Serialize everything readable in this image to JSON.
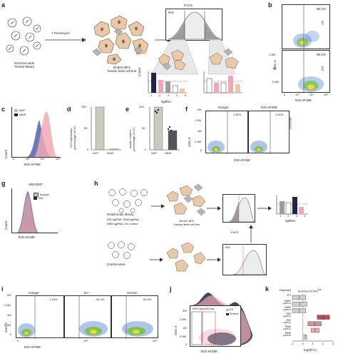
{
  "colors": {
    "pink": "#f0a9b2",
    "navy": "#1f2547",
    "beige": "#e9c9a8",
    "grey": "#9c9c9c",
    "red": "#c8323c",
    "density_blue": "#3d6fd0",
    "density_green": "#7cc353",
    "density_yellow": "#f2d43c"
  },
  "panels": {
    "a": "a",
    "b": "b",
    "c": "c",
    "d": "d",
    "e": "e",
    "f": "f",
    "g": "g",
    "h": "h",
    "i": "i",
    "j": "j",
    "k": "k"
  },
  "a": {
    "library_label": "Genome-wide\nTKOv3 library",
    "puromycin": "+ Puromycin",
    "cell_label": "EndoC-βH1\nhuman beta cell line",
    "facs": "FACS",
    "ins": "INS",
    "sgrna": "sgRNA",
    "count": "Count",
    "ticks": [
      "1",
      "2",
      "3",
      "4",
      "5"
    ]
  },
  "b": {
    "xlabel": "INS-AF488",
    "ylabel": "SSC-A",
    "top_pct": "56.1%",
    "top_name": "WT",
    "bottom_pct": "96.1%",
    "bottom_name": "INT",
    "y_ticks": [
      "1.5M",
      "1M",
      "0.5M",
      "0"
    ],
    "x_ticks": [
      "0",
      "10³",
      "10⁴",
      "10⁵"
    ]
  },
  "c": {
    "legend": [
      "siNT",
      "siINS"
    ],
    "xlabel": "INS-AF488",
    "ylabel": "Count",
    "x_ticks": [
      "0",
      "10³",
      "10⁴",
      "10⁵"
    ]
  },
  "d": {
    "ylabel": "INS expression\n(percentage of NT)",
    "y_ticks": [
      "100",
      "50",
      "0"
    ],
    "categories": [
      "siNT",
      "siINS"
    ],
    "values": [
      100,
      2
    ]
  },
  "e": {
    "ylabel": "Insulin content\n(percentage of NT)",
    "y_ticks": [
      "100",
      "50",
      "0"
    ],
    "categories": [
      "siNT",
      "siINS"
    ],
    "values": [
      100,
      45
    ]
  },
  "f": {
    "isotype": "Isotype",
    "ins": "INS-AF488",
    "iso_pct": "1.81%",
    "ins_pct": "1.54%",
    "side": "HEK293T",
    "xlabel": "INS-AF488",
    "ylabel": "SSC-A",
    "y_ticks": [
      "2M",
      "1.5M",
      "1M",
      "0.5M",
      "0"
    ]
  },
  "g": {
    "title": "HEK293T",
    "legend": [
      "Isotype",
      "INS"
    ],
    "xlabel": "INS-AF488",
    "ylabel": "Count"
  },
  "h": {
    "library_label": "Small-scale library",
    "items": [
      "INS sgRNA",
      "PAM sgRNA",
      "NMS sgRNA",
      "EV control"
    ],
    "cell_label": "EndoC-βH1\nHuman beta cell line",
    "facs": "FACS",
    "control": "Control virus",
    "ins": "INS",
    "sgrna": "sgRNA",
    "ticks": [
      "1",
      "2",
      "3",
      "4"
    ]
  },
  "i": {
    "titles": [
      "Isotype",
      "EV",
      "Screen"
    ],
    "pcts": [
      "1.14%",
      "94.4%",
      "69.4%"
    ],
    "xlabel": "INS-AF488",
    "ylabel": "SSC-A",
    "y_ticks": [
      "2M",
      "1.5M",
      "1M",
      "0.5M",
      "0"
    ],
    "x_ticks": [
      "0",
      "10³",
      "10⁵"
    ]
  },
  "j": {
    "gates": [
      "INS^neg",
      "INS^low"
    ],
    "legend": [
      "EV",
      "Screen"
    ],
    "xlabel": "INS-AF488",
    "ylabel": "SSC-A",
    "y_ticks": [
      "2M",
      "1.5M",
      "1M",
      "0.5M",
      "0"
    ]
  },
  "k": {
    "depleted": "Depleted",
    "enriched": "Enriched in INS",
    "enriched_sup": "low",
    "xlabel": "log2(FC)",
    "rows": [
      "EV",
      "NMS sgRNA1",
      "NMS sgRNA2",
      "INS sgRNA1",
      "INS sgRNA2",
      "PAM sgRNA1",
      "PAM sgRNA2"
    ],
    "row_labels": [
      "EV",
      "NMS",
      "sgRNA1",
      "NMS",
      "sgRNA2",
      "INS",
      "sgRNA1",
      "INS",
      "sgRNA2",
      "PAM",
      "sgRNA1",
      "PAM",
      "sgRNA2"
    ],
    "x_ticks": [
      "-1",
      "0",
      "1",
      "2",
      "3"
    ]
  },
  "chart_data": [
    {
      "panel": "d",
      "type": "bar",
      "categories": [
        "siNT",
        "siINS"
      ],
      "values": [
        100,
        2
      ],
      "ylabel": "INS expression (percentage of NT)",
      "ylim": [
        0,
        100
      ]
    },
    {
      "panel": "e",
      "type": "bar",
      "categories": [
        "siNT",
        "siINS"
      ],
      "values": [
        100,
        45
      ],
      "ylabel": "Insulin content (percentage of NT)",
      "ylim": [
        0,
        100
      ]
    },
    {
      "panel": "k",
      "type": "bar",
      "categories": [
        "EV",
        "NMS sgRNA1",
        "NMS sgRNA2",
        "INS sgRNA1",
        "INS sgRNA2",
        "PAM sgRNA1",
        "PAM sgRNA2"
      ],
      "ranges": [
        [
          -1,
          0.3
        ],
        [
          -1,
          0.4
        ],
        [
          -1,
          0.3
        ],
        [
          1.4,
          2.6
        ],
        [
          0.5,
          1.8
        ],
        [
          0.8,
          1.6
        ],
        [
          0.1,
          0.4
        ]
      ],
      "xlabel": "log2(FC)",
      "xlim": [
        -1,
        3
      ]
    }
  ]
}
